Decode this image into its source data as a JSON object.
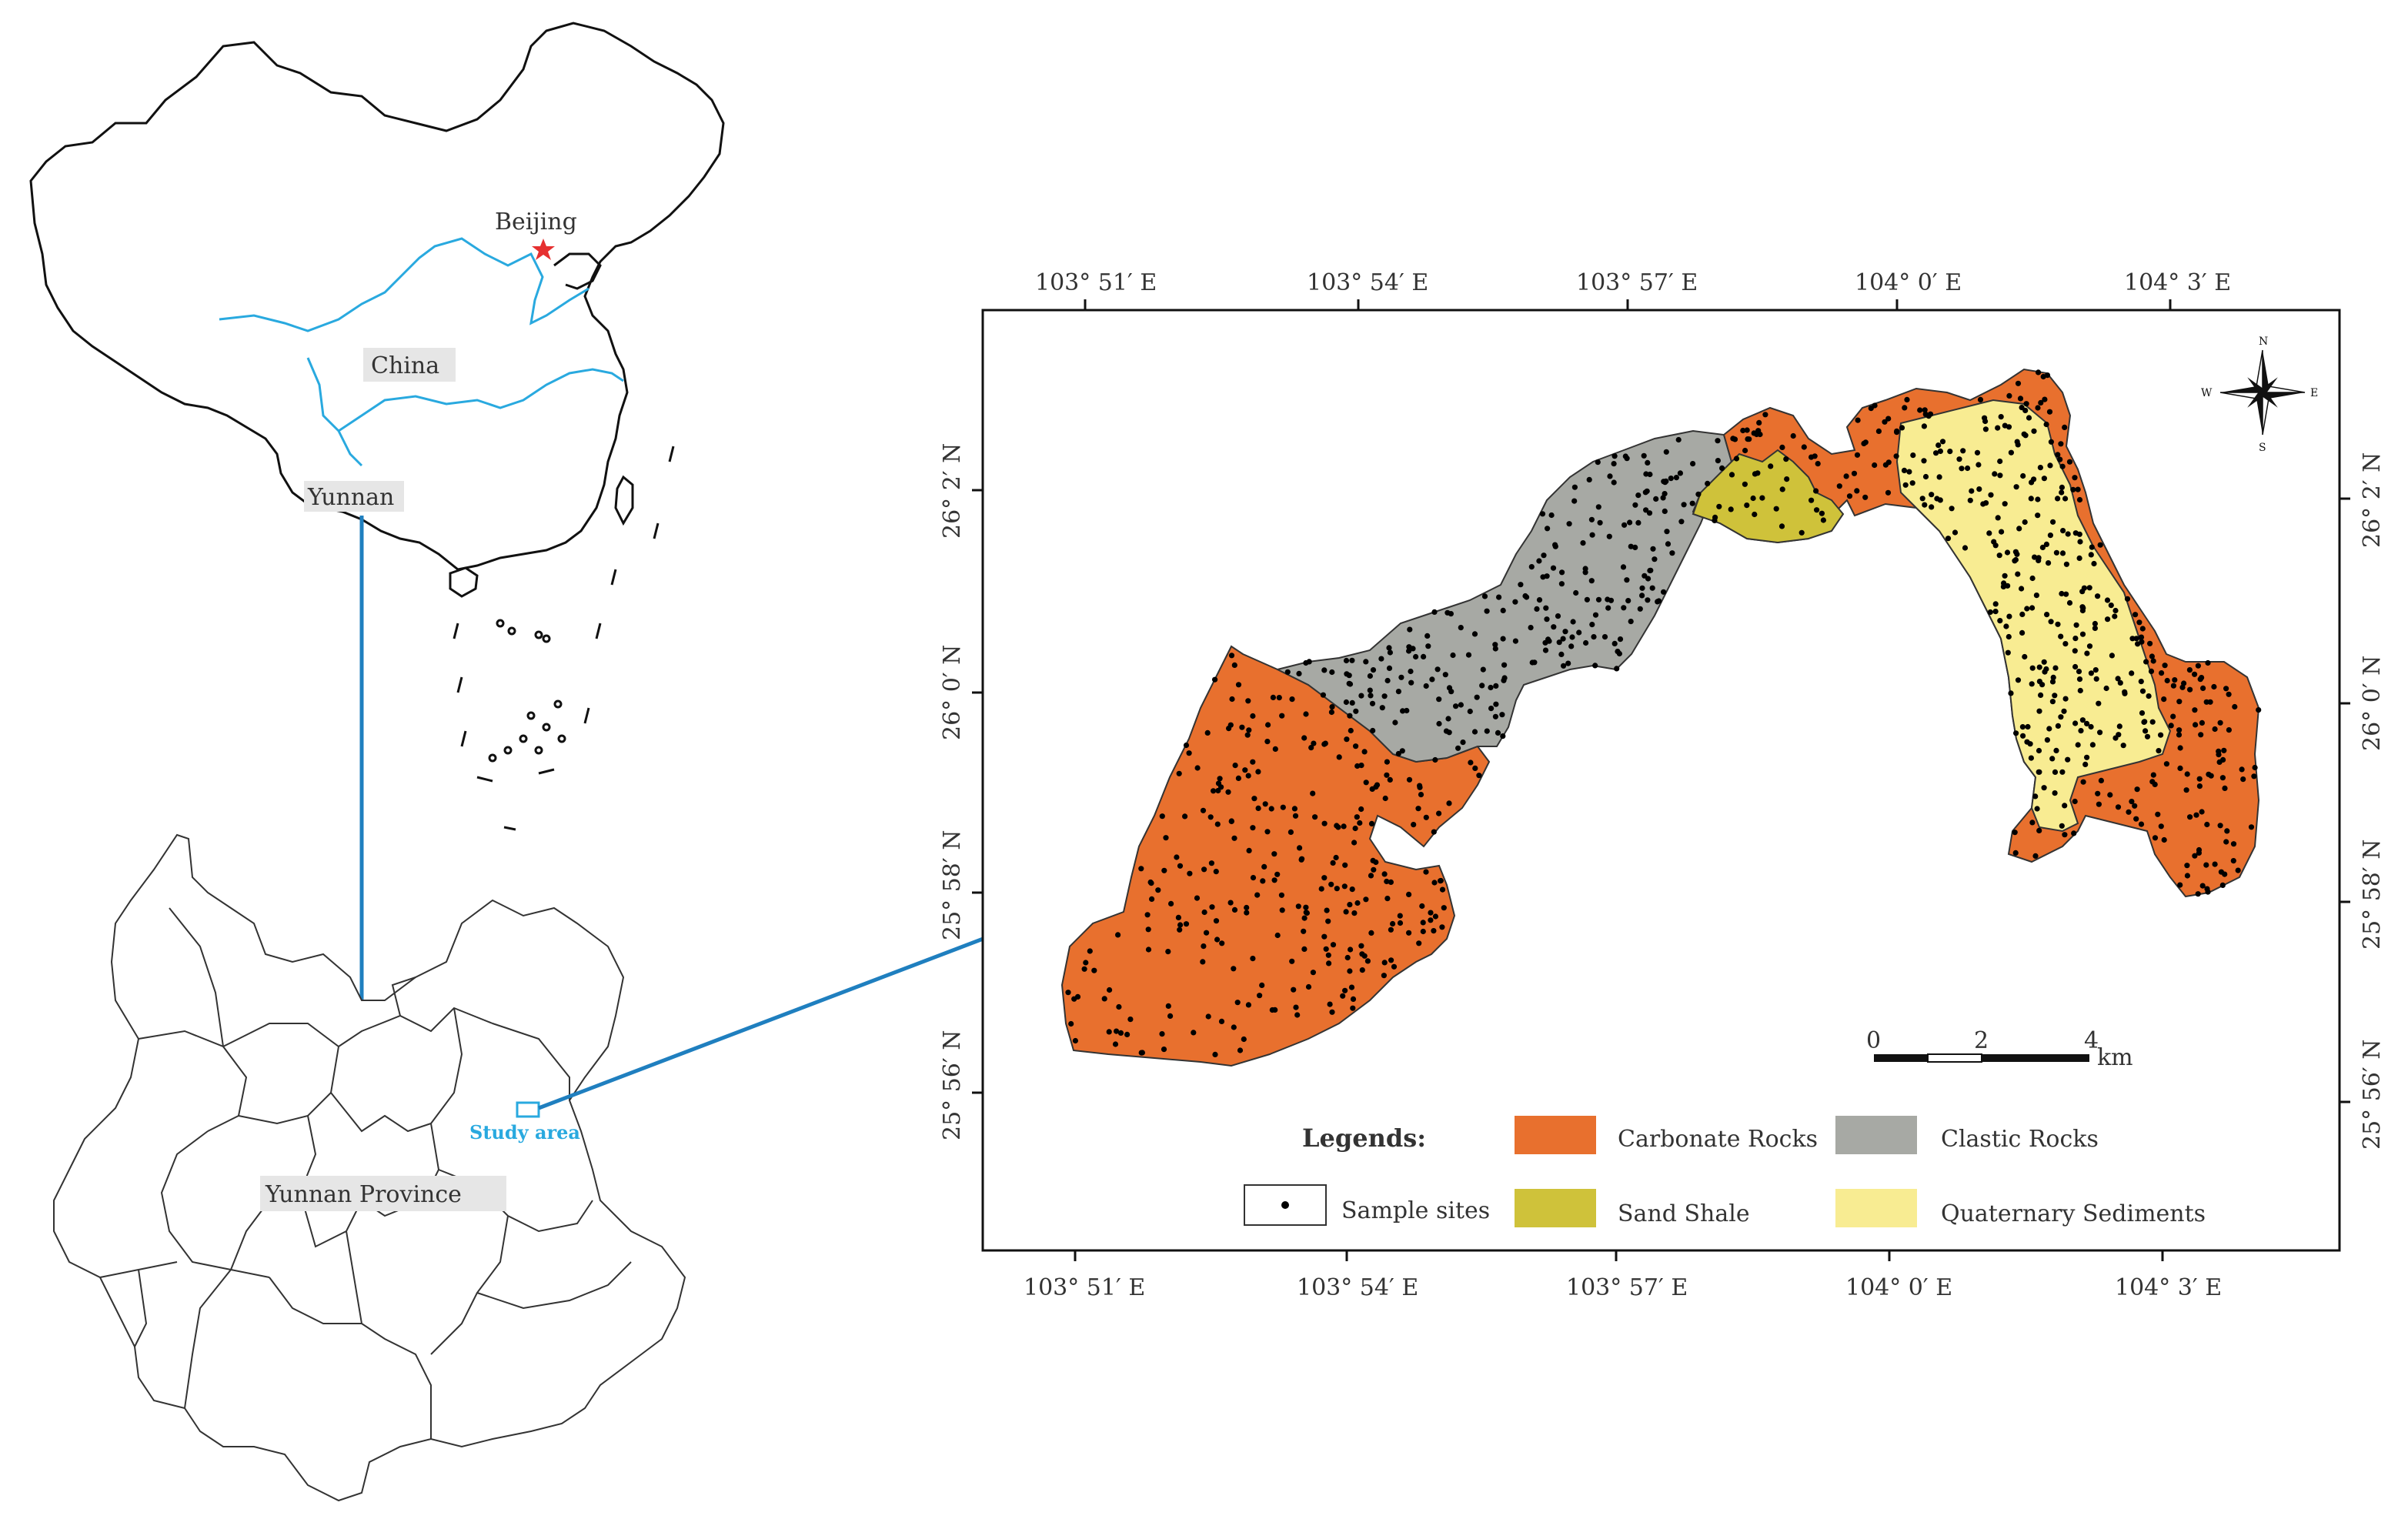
{
  "overview": {
    "china_label": "China",
    "capital_label": "Beijing",
    "yunnan_label": "Yunnan",
    "province_label": "Yunnan Province",
    "study_area_label": "Study area"
  },
  "map": {
    "top_ticks": [
      "103° 51′ E",
      "103° 54′ E",
      "103° 57′ E",
      "104° 0′ E",
      "104° 3′ E"
    ],
    "bottom_ticks": [
      "103° 51′ E",
      "103° 54′ E",
      "103° 57′ E",
      "104° 0′ E",
      "104° 3′ E"
    ],
    "left_ticks": [
      "26° 2′ N",
      "26° 0′ N",
      "25° 58′ N",
      "25° 56′ N"
    ],
    "right_ticks": [
      "26° 2′ N",
      "26° 0′ N",
      "25° 58′ N",
      "25° 56′ N"
    ],
    "scale_bar": {
      "labels": [
        "0",
        "2",
        "4"
      ],
      "unit": "km"
    },
    "north_arrow": {
      "n": "N",
      "s": "S",
      "e": "E",
      "w": "W"
    }
  },
  "legend": {
    "title": "Legends:",
    "items": [
      {
        "key": "carbonate",
        "label": "Carbonate Rocks",
        "color": "#E8702E"
      },
      {
        "key": "clastic",
        "label": "Clastic Rocks",
        "color": "#A7A9A4"
      },
      {
        "key": "sample",
        "label": "Sample sites",
        "color": "#ffffff"
      },
      {
        "key": "sand_shale",
        "label": "Sand Shale",
        "color": "#CFC23A"
      },
      {
        "key": "quaternary",
        "label": "Quaternary Sediments",
        "color": "#F8EC92"
      }
    ]
  },
  "colors": {
    "river": "#29A9DF",
    "arrow": "#1F7FBF",
    "study_box": "#29A9DF",
    "capital_star": "#E63030"
  }
}
